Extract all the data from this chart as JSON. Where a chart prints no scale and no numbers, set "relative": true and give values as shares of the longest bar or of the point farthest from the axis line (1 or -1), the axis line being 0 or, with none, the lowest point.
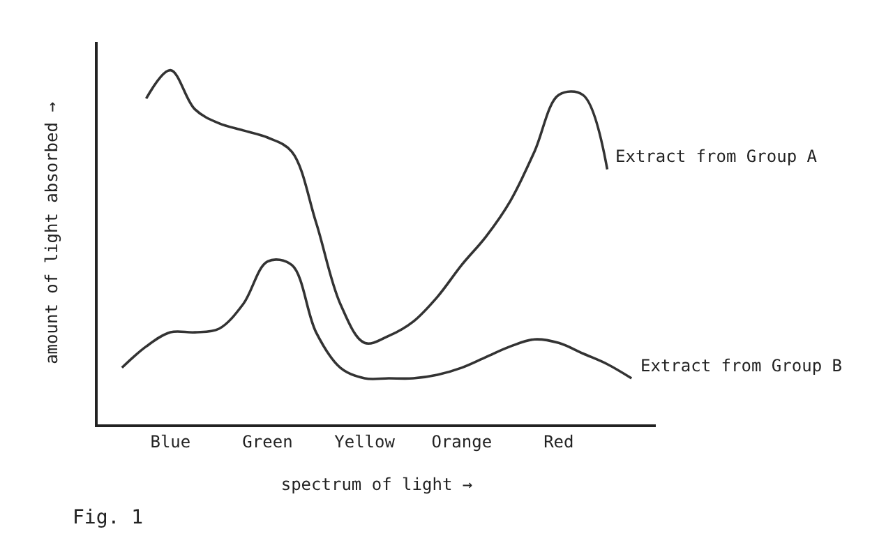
{
  "chart_data": {
    "type": "line",
    "relative": true,
    "xlabel": "spectrum of light →",
    "ylabel": "amount of light absorbed →",
    "categories": [
      null,
      null,
      "Blue",
      null,
      null,
      null,
      "Green",
      null,
      null,
      null,
      "Yellow",
      null,
      null,
      null,
      "Orange",
      null,
      null,
      null,
      "Red",
      null,
      null,
      null
    ],
    "series": [
      {
        "name": "Extract from Group A",
        "color": "#333333",
        "values": [
          null,
          0.92,
          1.0,
          0.89,
          0.85,
          0.83,
          0.81,
          0.77,
          0.57,
          0.34,
          0.23,
          0.25,
          0.29,
          0.36,
          0.45,
          0.53,
          0.63,
          0.77,
          0.93,
          0.93,
          0.72,
          null
        ]
      },
      {
        "name": "Extract from Group B",
        "color": "#333333",
        "values": [
          0.16,
          0.22,
          0.26,
          0.26,
          0.27,
          0.34,
          0.46,
          0.45,
          0.26,
          0.16,
          0.13,
          0.13,
          0.13,
          0.14,
          0.16,
          0.19,
          0.22,
          0.24,
          0.23,
          0.2,
          0.17,
          0.13
        ]
      }
    ],
    "annotations": [
      "Fig. 1"
    ],
    "legend": false,
    "marker": "none",
    "line_style": "solid"
  }
}
